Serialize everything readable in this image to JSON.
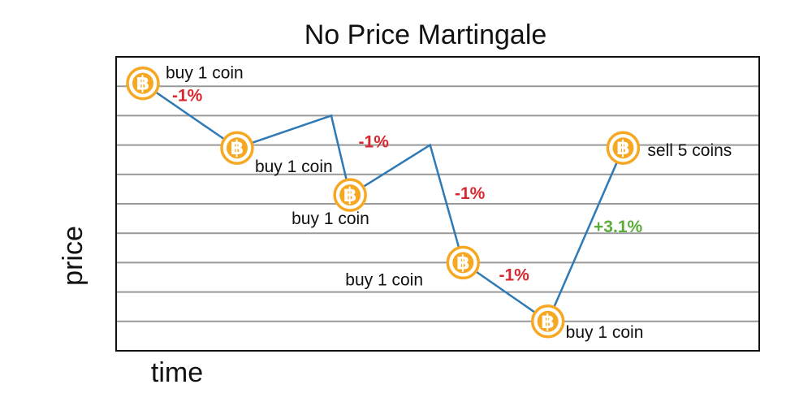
{
  "colors": {
    "line": "#2f79b5",
    "coin": "#f7a823",
    "loss": "#d8282f",
    "gain": "#5aad3a",
    "grid": "#999999",
    "frame": "#111111"
  },
  "chart_data": {
    "type": "line",
    "title": "No Price Martingale",
    "xlabel": "time",
    "ylabel": "price",
    "ylim": [
      0,
      10
    ],
    "grid": "horizontal lines, no tick labels",
    "points": [
      {
        "x": 1,
        "y": 9.1
      },
      {
        "x": 2,
        "y": 6.9
      },
      {
        "x": 3,
        "y": 8.0
      },
      {
        "x": 3.2,
        "y": 5.3
      },
      {
        "x": 4.05,
        "y": 7.0
      },
      {
        "x": 4.4,
        "y": 3.0
      },
      {
        "x": 5.3,
        "y": 1.0
      },
      {
        "x": 6.1,
        "y": 6.9
      }
    ],
    "coins": [
      {
        "point": 0,
        "label": "buy 1 coin"
      },
      {
        "point": 1,
        "label": "buy 1 coin"
      },
      {
        "point": 3,
        "label": "buy 1 coin"
      },
      {
        "point": 5,
        "label": "buy 1 coin"
      },
      {
        "point": 6,
        "label": "buy 1 coin"
      },
      {
        "point": 7,
        "label": "sell 5 coins"
      }
    ],
    "annotations": [
      {
        "text": "-1%",
        "kind": "loss"
      },
      {
        "text": "-1%",
        "kind": "loss"
      },
      {
        "text": "-1%",
        "kind": "loss"
      },
      {
        "text": "-1%",
        "kind": "loss"
      },
      {
        "text": "+3.1%",
        "kind": "gain"
      }
    ],
    "coin_symbol": "฿"
  }
}
